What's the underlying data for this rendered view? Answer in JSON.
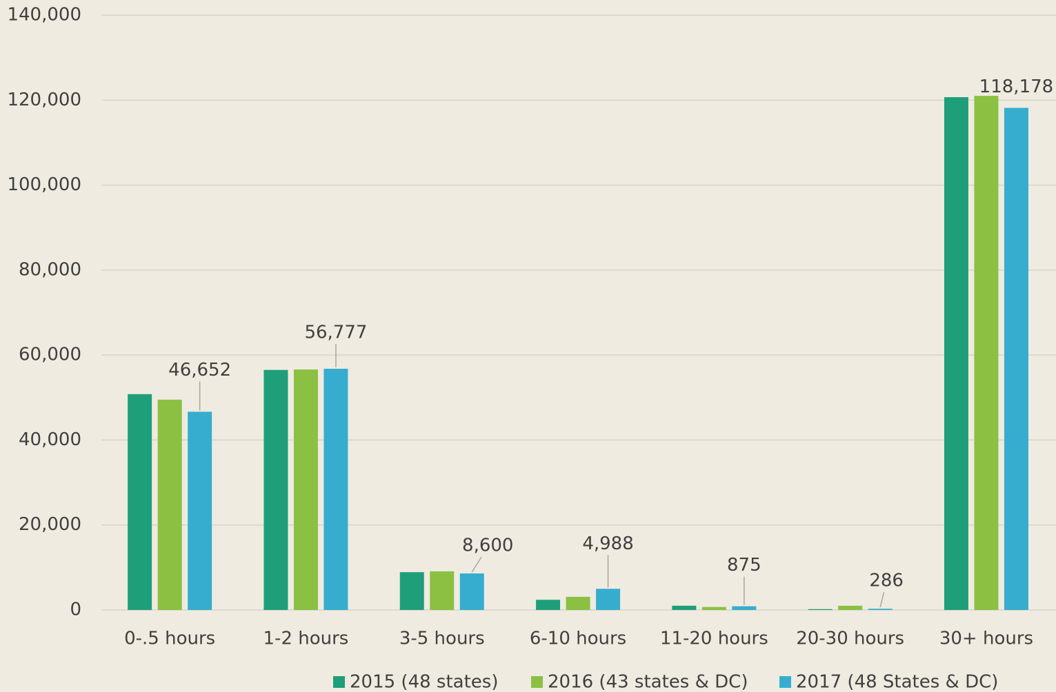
{
  "chart_data": {
    "type": "bar",
    "categories": [
      "0-.5 hours",
      "1-2 hours",
      "3-5 hours",
      "6-10 hours",
      "11-20 hours",
      "20-30 hours",
      "30+ hours"
    ],
    "series": [
      {
        "name": "2015 (48 states)",
        "color": "#1f9e7a",
        "values": [
          50800,
          56500,
          8900,
          2400,
          1000,
          200,
          120700
        ]
      },
      {
        "name": "2016 (43 states & DC)",
        "color": "#8bc043",
        "values": [
          49500,
          56600,
          9100,
          3100,
          700,
          1000,
          121000
        ]
      },
      {
        "name": "2017 (48 States & DC)",
        "color": "#36adcf",
        "values": [
          46652,
          56777,
          8600,
          4988,
          875,
          286,
          118178
        ],
        "value_labels": [
          "46,652",
          "56,777",
          "8,600",
          "4,988",
          "875",
          "286",
          "118,178"
        ]
      }
    ],
    "ylim": [
      0,
      140000
    ],
    "yticks": [
      0,
      {
        "value": 20000,
        "label": "20,000"
      },
      {
        "value": 40000,
        "label": "40,000"
      },
      {
        "value": 60000,
        "label": "60,000"
      },
      {
        "value": 80000,
        "label": "80,000"
      },
      {
        "value": 100000,
        "label": "100,000"
      },
      {
        "value": 120000,
        "label": "120,000"
      },
      {
        "value": 140000,
        "label": "140,000"
      }
    ],
    "grid": true,
    "legend": "bottom"
  }
}
